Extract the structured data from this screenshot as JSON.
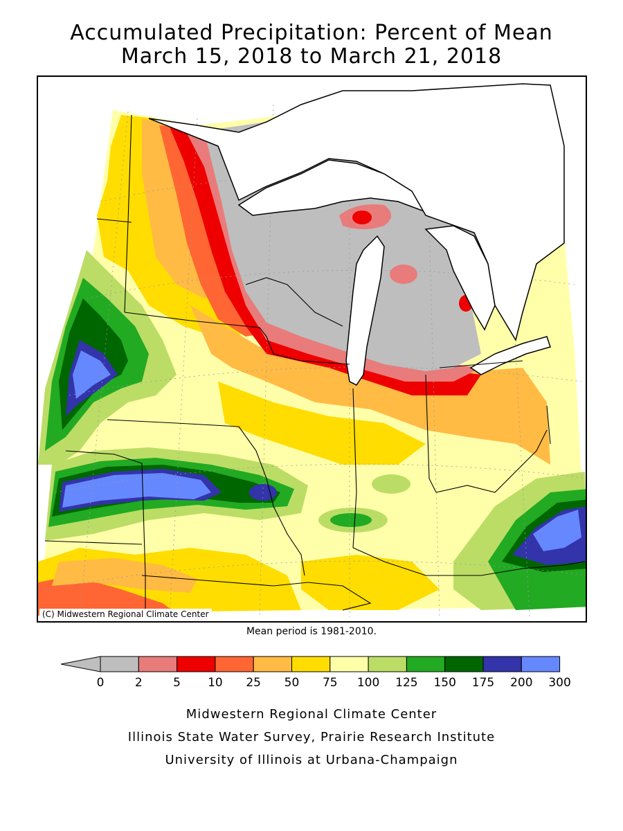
{
  "title": {
    "line1": "Accumulated Precipitation: Percent of Mean",
    "line2": "March 15, 2018 to March 21, 2018"
  },
  "map": {
    "copyright": "(C) Midwestern Regional Climate Center",
    "land_color": "#ffffff",
    "no_data_color": "#bebebe"
  },
  "mean_period": "Mean period is 1981-2010.",
  "legend": {
    "ticks": [
      "0",
      "2",
      "5",
      "10",
      "25",
      "50",
      "75",
      "100",
      "125",
      "150",
      "175",
      "200",
      "300"
    ],
    "colors": [
      "#bebebe",
      "#e97b7b",
      "#ee0000",
      "#ff6633",
      "#ffbb44",
      "#ffdd00",
      "#ffffaa",
      "#bbdd66",
      "#22aa22",
      "#006600",
      "#3333aa",
      "#6688ff"
    ],
    "underflow_color": "#bebebe"
  },
  "credits": {
    "line1": "Midwestern Regional Climate Center",
    "line2": "Illinois State Water Survey, Prairie Research Institute",
    "line3": "University of Illinois at Urbana-Champaign"
  }
}
